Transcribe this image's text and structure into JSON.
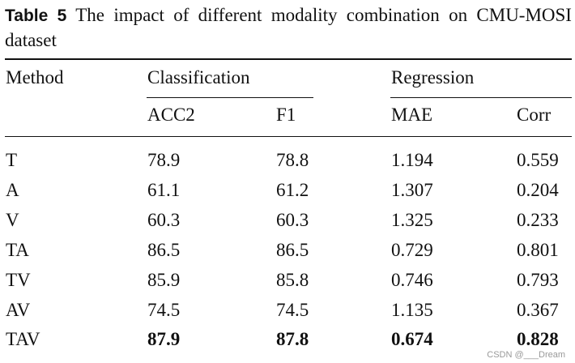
{
  "caption": {
    "label": "Table 5",
    "text": "The impact of different modality combination on CMU-MOSI dataset"
  },
  "headers": {
    "method": "Method",
    "classification": "Classification",
    "regression": "Regression",
    "acc2": "ACC2",
    "f1": "F1",
    "mae": "MAE",
    "corr": "Corr"
  },
  "rows": [
    {
      "method": "T",
      "acc2": "78.9",
      "f1": "78.8",
      "mae": "1.194",
      "corr": "0.559"
    },
    {
      "method": "A",
      "acc2": "61.1",
      "f1": "61.2",
      "mae": "1.307",
      "corr": "0.204"
    },
    {
      "method": "V",
      "acc2": "60.3",
      "f1": "60.3",
      "mae": "1.325",
      "corr": "0.233"
    },
    {
      "method": "TA",
      "acc2": "86.5",
      "f1": "86.5",
      "mae": "0.729",
      "corr": "0.801"
    },
    {
      "method": "TV",
      "acc2": "85.9",
      "f1": "85.8",
      "mae": "0.746",
      "corr": "0.793"
    },
    {
      "method": "AV",
      "acc2": "74.5",
      "f1": "74.5",
      "mae": "1.135",
      "corr": "0.367"
    },
    {
      "method": "TAV",
      "acc2": "87.9",
      "f1": "87.8",
      "mae": "0.674",
      "corr": "0.828"
    }
  ],
  "watermark": "CSDN @___Dream"
}
